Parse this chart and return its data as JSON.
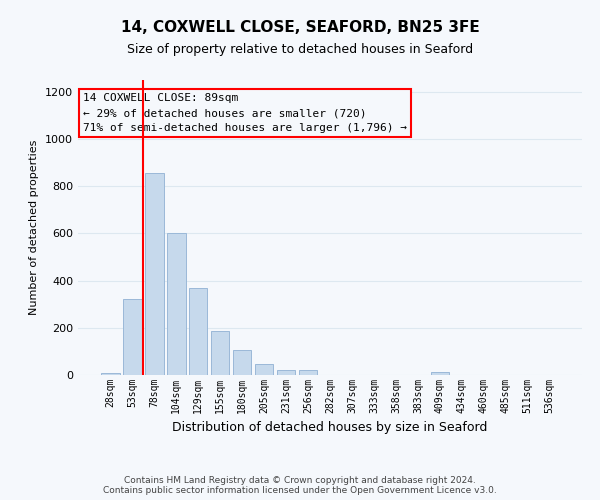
{
  "title": "14, COXWELL CLOSE, SEAFORD, BN25 3FE",
  "subtitle": "Size of property relative to detached houses in Seaford",
  "xlabel": "Distribution of detached houses by size in Seaford",
  "ylabel": "Number of detached properties",
  "bin_labels": [
    "28sqm",
    "53sqm",
    "78sqm",
    "104sqm",
    "129sqm",
    "155sqm",
    "180sqm",
    "205sqm",
    "231sqm",
    "256sqm",
    "282sqm",
    "307sqm",
    "333sqm",
    "358sqm",
    "383sqm",
    "409sqm",
    "434sqm",
    "460sqm",
    "485sqm",
    "511sqm",
    "536sqm"
  ],
  "bin_values": [
    10,
    320,
    855,
    600,
    370,
    185,
    105,
    47,
    22,
    20,
    0,
    0,
    0,
    0,
    0,
    12,
    0,
    0,
    0,
    0,
    0
  ],
  "bar_color": "#c6d9ec",
  "bar_edge_color": "#9ab8d8",
  "vline_color": "red",
  "annotation_box_text": "14 COXWELL CLOSE: 89sqm\n← 29% of detached houses are smaller (720)\n71% of semi-detached houses are larger (1,796) →",
  "ylim": [
    0,
    1250
  ],
  "yticks": [
    0,
    200,
    400,
    600,
    800,
    1000,
    1200
  ],
  "footer_line1": "Contains HM Land Registry data © Crown copyright and database right 2024.",
  "footer_line2": "Contains public sector information licensed under the Open Government Licence v3.0.",
  "grid_color": "#dde8f0",
  "background_color": "#f5f8fc"
}
